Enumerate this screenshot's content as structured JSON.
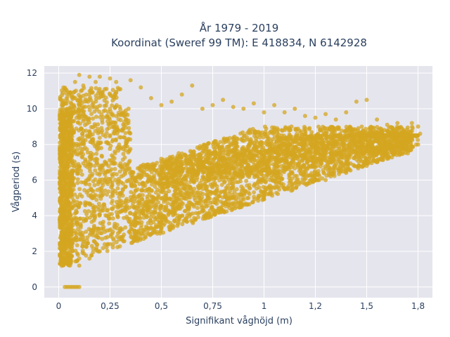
{
  "chart_data": {
    "type": "scatter",
    "title": "År 1979 - 2019",
    "subtitle": "Koordinat (Sweref 99 TM): E 418834, N 6142928",
    "xlabel": "Signifikant våghöjd (m)",
    "ylabel": "Vågperiod (s)",
    "xlim": [
      -0.07,
      1.82
    ],
    "ylim": [
      -0.6,
      12.4
    ],
    "x_ticks": [
      0,
      0.25,
      0.5,
      0.75,
      1,
      1.25,
      1.5,
      1.75
    ],
    "x_tick_labels": [
      "0",
      "0,25",
      "0,5",
      "0,75",
      "1",
      "1,2",
      "1,5",
      "1,8"
    ],
    "y_ticks": [
      0,
      2,
      4,
      6,
      8,
      10,
      12
    ],
    "y_tick_labels": [
      "0",
      "2",
      "4",
      "6",
      "8",
      "10",
      "12"
    ],
    "grid": true,
    "marker_color": "#d4a520",
    "plot_background": "#e5e5ee",
    "series": [
      {
        "values_description": "dense cloud of wave height vs period observations",
        "points": [
          [
            0.01,
            7.2
          ],
          [
            0.02,
            1.5
          ],
          [
            0.02,
            2.5
          ],
          [
            0.03,
            0
          ],
          [
            0.04,
            0
          ],
          [
            0.05,
            0
          ],
          [
            0.06,
            0
          ],
          [
            0.07,
            0
          ],
          [
            0.08,
            0
          ],
          [
            0.09,
            0
          ],
          [
            0.1,
            0
          ],
          [
            0.03,
            3.0
          ],
          [
            0.04,
            5.0
          ],
          [
            0.05,
            9.0
          ],
          [
            0.06,
            10.0
          ],
          [
            0.08,
            11.5
          ],
          [
            0.1,
            11.9
          ],
          [
            0.12,
            11.3
          ],
          [
            0.15,
            11.8
          ],
          [
            0.18,
            11.5
          ],
          [
            0.2,
            11.8
          ],
          [
            0.25,
            11.7
          ],
          [
            0.28,
            11.5
          ],
          [
            0.3,
            11.1
          ],
          [
            0.35,
            11.6
          ],
          [
            0.4,
            11.2
          ],
          [
            0.45,
            10.6
          ],
          [
            0.5,
            10.2
          ],
          [
            0.55,
            10.4
          ],
          [
            0.6,
            10.8
          ],
          [
            0.65,
            11.3
          ],
          [
            0.7,
            10.0
          ],
          [
            0.75,
            10.2
          ],
          [
            0.8,
            10.5
          ],
          [
            0.85,
            10.1
          ],
          [
            0.9,
            10.0
          ],
          [
            0.95,
            10.3
          ],
          [
            1.0,
            9.8
          ],
          [
            1.05,
            10.2
          ],
          [
            1.1,
            9.8
          ],
          [
            1.15,
            10.0
          ],
          [
            1.2,
            9.6
          ],
          [
            1.25,
            9.5
          ],
          [
            1.3,
            9.7
          ],
          [
            1.35,
            9.4
          ],
          [
            1.4,
            9.8
          ],
          [
            1.45,
            10.4
          ],
          [
            1.5,
            10.5
          ],
          [
            1.55,
            9.4
          ],
          [
            1.6,
            9.1
          ],
          [
            1.65,
            9.2
          ],
          [
            1.7,
            8.7
          ],
          [
            1.72,
            9.2
          ],
          [
            1.75,
            9.0
          ],
          [
            1.76,
            8.6
          ],
          [
            0.05,
            1.3
          ],
          [
            0.1,
            1.2
          ],
          [
            0.15,
            1.6
          ],
          [
            0.2,
            2.0
          ],
          [
            0.25,
            2.4
          ],
          [
            0.3,
            2.8
          ],
          [
            0.35,
            3.0
          ],
          [
            0.4,
            3.3
          ],
          [
            0.5,
            3.7
          ],
          [
            0.6,
            4.0
          ],
          [
            0.7,
            4.3
          ],
          [
            0.8,
            4.6
          ],
          [
            0.9,
            4.9
          ],
          [
            1.0,
            5.1
          ],
          [
            1.1,
            5.5
          ],
          [
            1.2,
            5.8
          ],
          [
            1.3,
            6.0
          ],
          [
            1.4,
            6.4
          ],
          [
            1.5,
            6.8
          ],
          [
            1.6,
            7.2
          ],
          [
            1.7,
            7.5
          ],
          [
            1.75,
            8.0
          ]
        ]
      }
    ]
  }
}
